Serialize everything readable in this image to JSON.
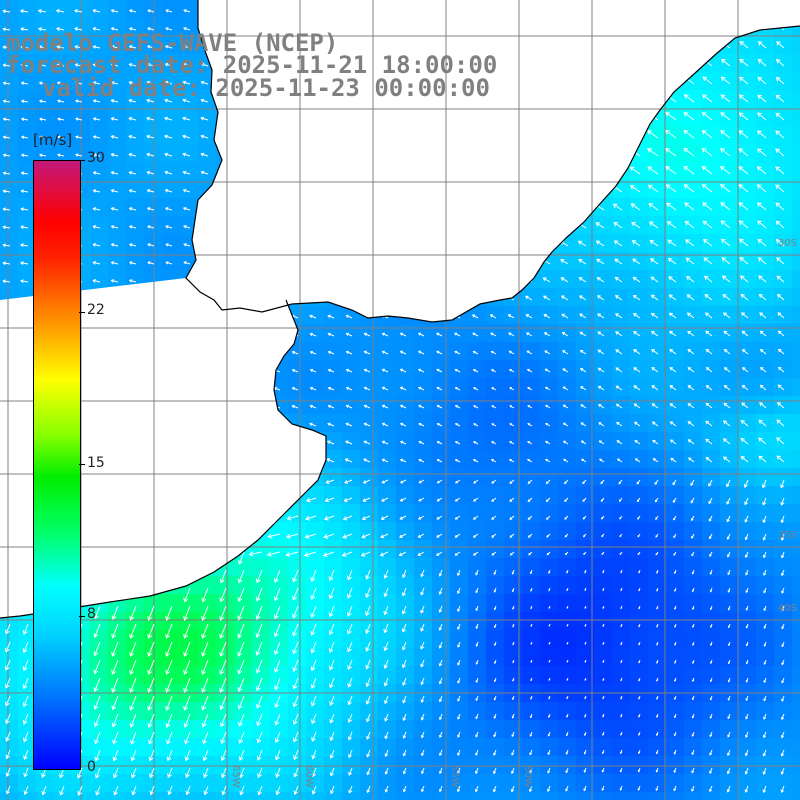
{
  "title": {
    "model": "modelo GEFS-WAVE (NCEP)",
    "forecast": "forecast date: 2025-11-21 18:00:00",
    "valid": "valid date: 2025-11-23 00:00:00"
  },
  "colorbar": {
    "unit": "[m/s]",
    "ticks": [
      "30",
      "22",
      "15",
      "8",
      "0"
    ],
    "tick_values": [
      30,
      22,
      15,
      8,
      0
    ],
    "range": [
      0,
      30
    ],
    "colors": [
      "#0000ff",
      "#0077ff",
      "#00d2ff",
      "#00ffff",
      "#00ff66",
      "#00ee00",
      "#88ff00",
      "#ffff00",
      "#ff9900",
      "#ff2200",
      "#ff0000",
      "#c2187a"
    ]
  },
  "grid": {
    "lon_labels": [
      "65W",
      "60W",
      "55W",
      "50W"
    ],
    "lat_labels": [
      "30S",
      "35S",
      "40S"
    ]
  },
  "map": {
    "land_color": "#ffffff",
    "coast_color": "#000000",
    "grid_color": "#808080",
    "arrow_color": "#ffffff"
  }
}
